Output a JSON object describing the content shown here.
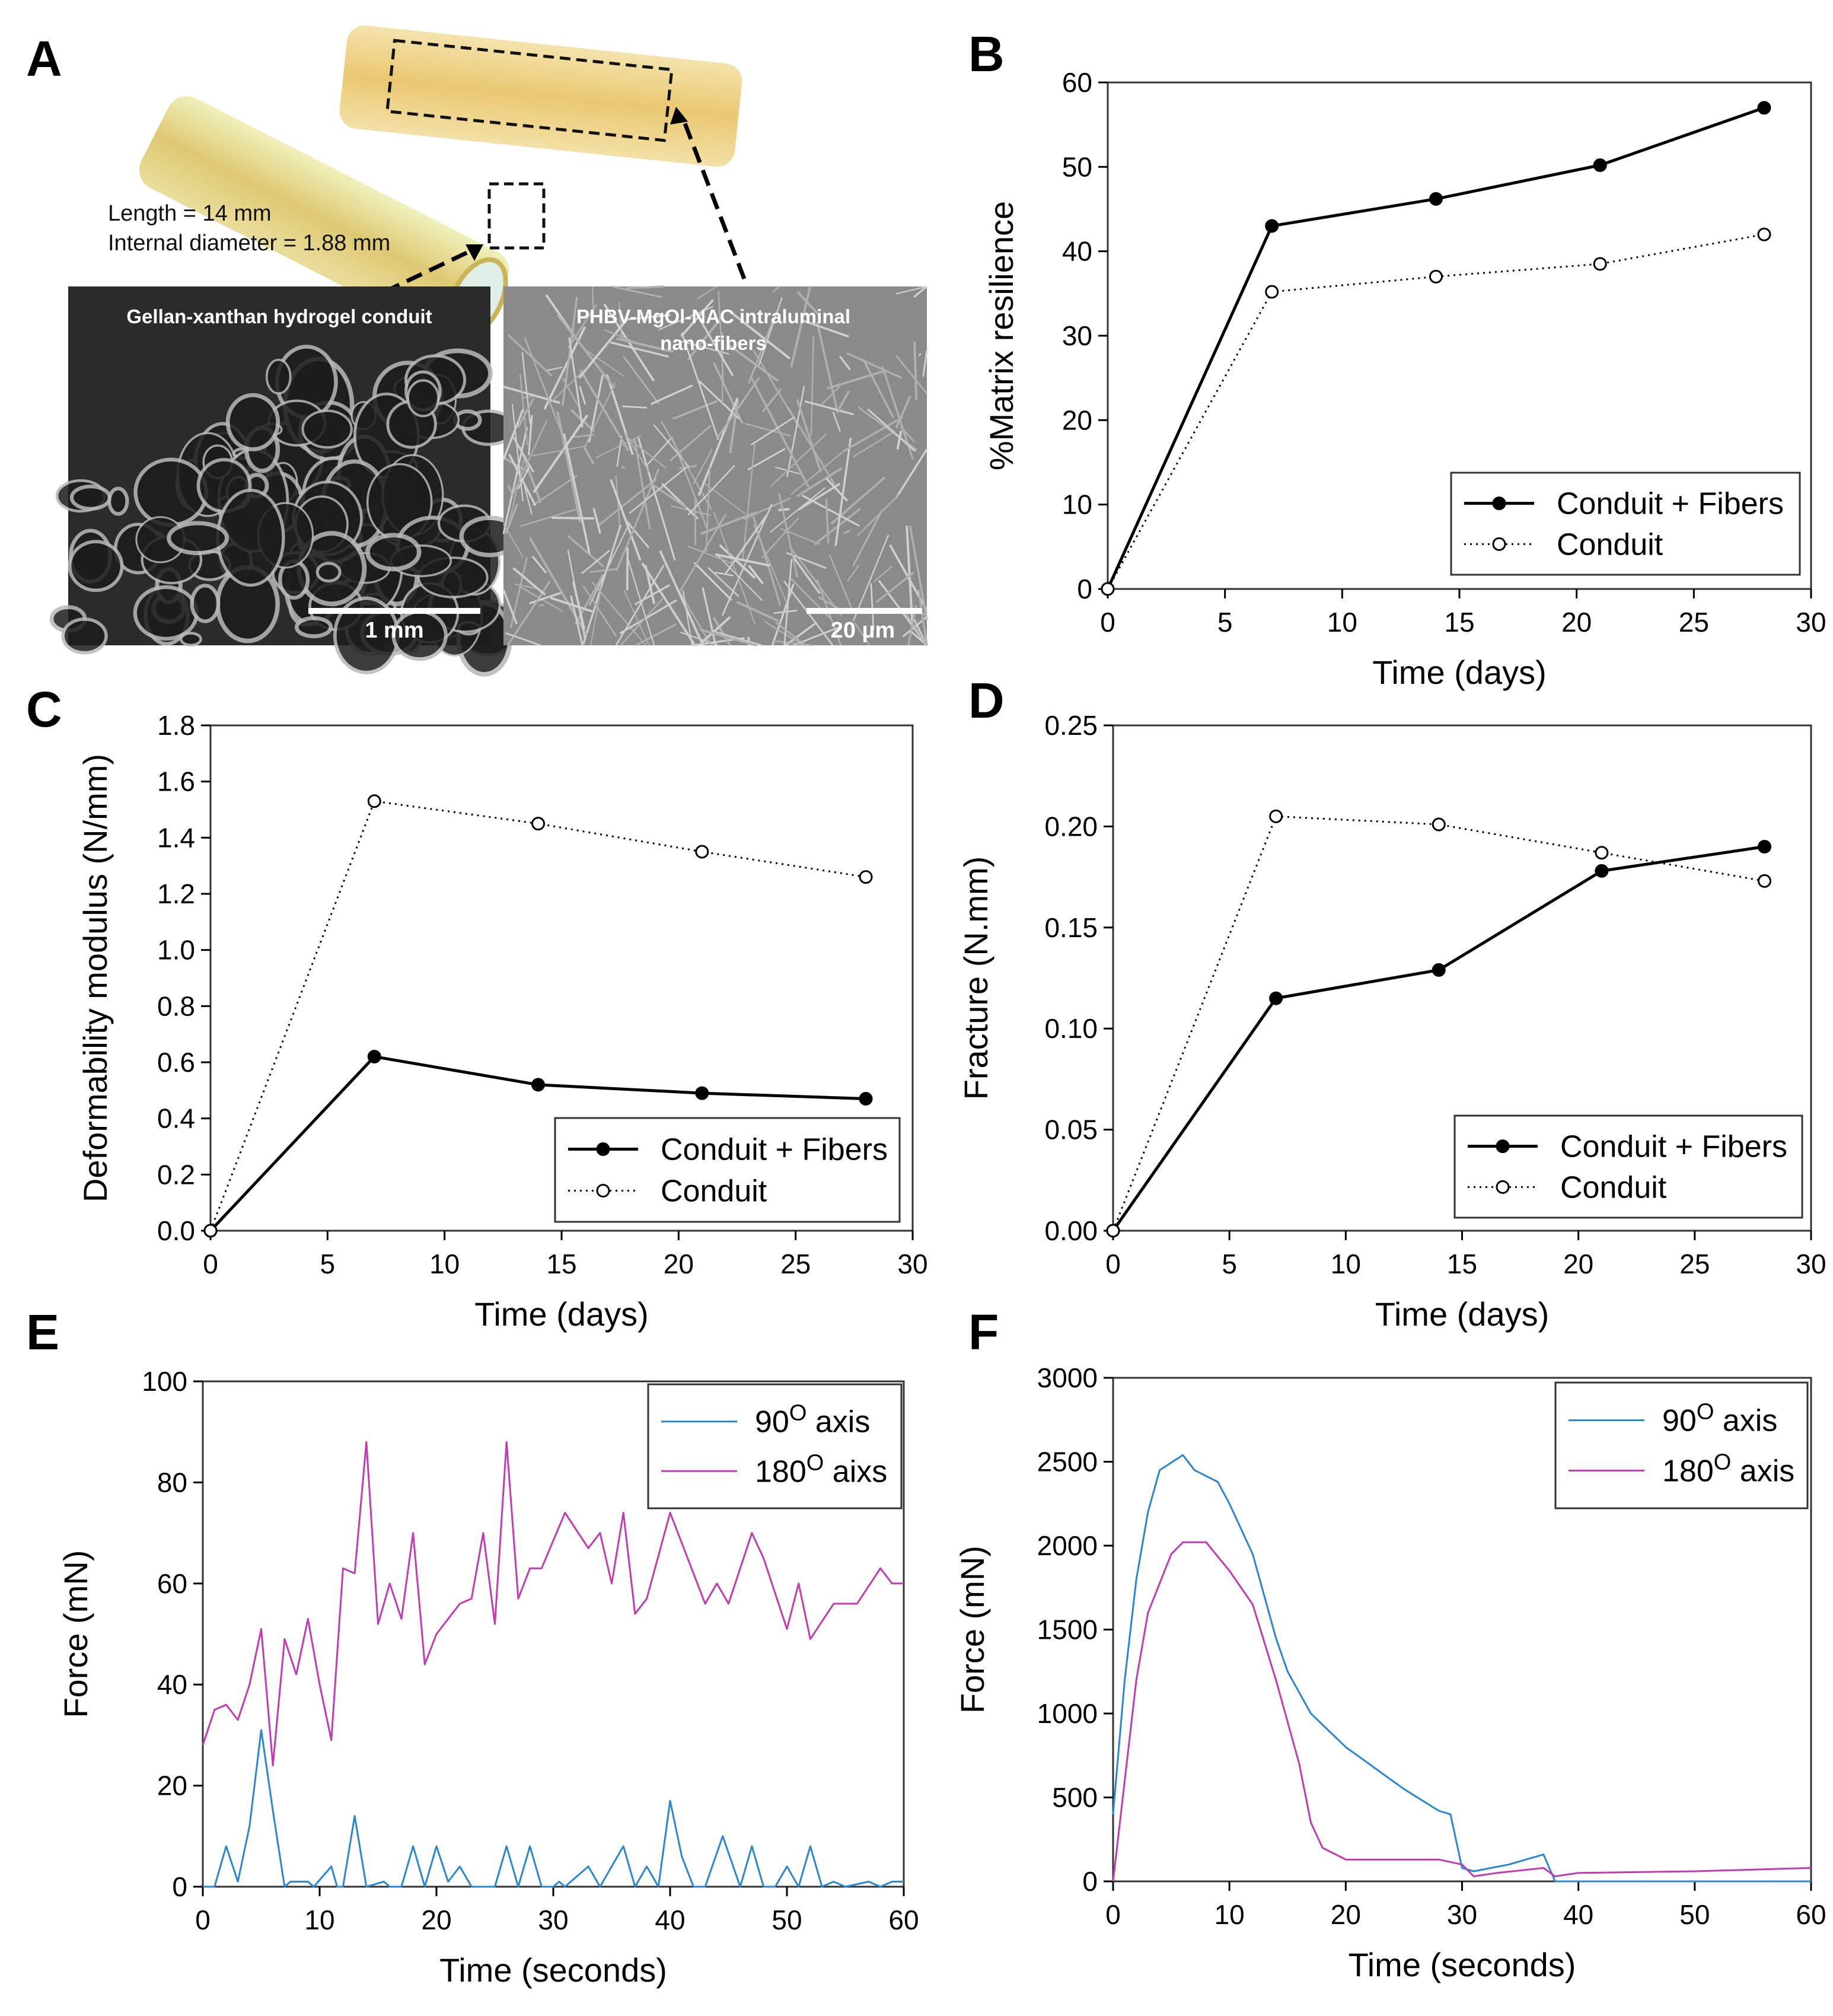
{
  "panel_a": {
    "letter": "A",
    "length_label": "Length = 14 mm",
    "diameter_label": "Internal diameter = 1.88 mm",
    "sem_left_title": "Gellan-xanthan  hydrogel conduit",
    "sem_left_scale": "1 mm",
    "sem_right_title_1": "PHBV-MgOl-NAC  intraluminal",
    "sem_right_title_2": "nano-fibers",
    "sem_right_scale": "20 µm"
  },
  "chart_data": [
    {
      "panel": "B",
      "type": "line",
      "xlabel": "Time (days)",
      "ylabel": "%Matrix resilience",
      "xlim": [
        0,
        30
      ],
      "ylim": [
        0,
        60
      ],
      "xticks": [
        "0",
        "5",
        "10",
        "15",
        "20",
        "25",
        "30"
      ],
      "yticks": [
        "0",
        "10",
        "20",
        "30",
        "40",
        "50",
        "60"
      ],
      "legend": "bottom-right",
      "series": [
        {
          "name": "Conduit + Fibers",
          "style": "solid",
          "marker": "filled-circle",
          "color": "#000000",
          "x": [
            0,
            7,
            14,
            21,
            28
          ],
          "y": [
            0,
            43,
            46.2,
            50.2,
            57
          ]
        },
        {
          "name": "Conduit",
          "style": "dotted",
          "marker": "open-circle",
          "color": "#000000",
          "x": [
            0,
            7,
            14,
            21,
            28
          ],
          "y": [
            0,
            35.2,
            37,
            38.5,
            42
          ]
        }
      ]
    },
    {
      "panel": "C",
      "type": "line",
      "xlabel": "Time (days)",
      "ylabel": "Deformability modulus (N/mm)",
      "xlim": [
        0,
        30
      ],
      "ylim": [
        0,
        1.8
      ],
      "xticks": [
        "0",
        "5",
        "10",
        "15",
        "20",
        "25",
        "30"
      ],
      "yticks": [
        "0.0",
        "0.2",
        "0.4",
        "0.6",
        "0.8",
        "1.0",
        "1.2",
        "1.4",
        "1.6",
        "1.8"
      ],
      "legend": "bottom-right",
      "series": [
        {
          "name": "Conduit + Fibers",
          "style": "solid",
          "marker": "filled-circle",
          "color": "#000000",
          "x": [
            0,
            7,
            14,
            21,
            28
          ],
          "y": [
            0,
            0.62,
            0.52,
            0.49,
            0.47
          ]
        },
        {
          "name": "Conduit",
          "style": "dotted",
          "marker": "open-circle",
          "color": "#000000",
          "x": [
            0,
            7,
            14,
            21,
            28
          ],
          "y": [
            0,
            1.53,
            1.45,
            1.35,
            1.26
          ]
        }
      ]
    },
    {
      "panel": "D",
      "type": "line",
      "xlabel": "Time (days)",
      "ylabel": "Fracture (N.mm)",
      "xlim": [
        0,
        30
      ],
      "ylim": [
        0,
        0.25
      ],
      "xticks": [
        "0",
        "5",
        "10",
        "15",
        "20",
        "25",
        "30"
      ],
      "yticks": [
        "0.00",
        "0.05",
        "0.10",
        "0.15",
        "0.20",
        "0.25"
      ],
      "legend": "bottom-right",
      "series": [
        {
          "name": "Conduit + Fibers",
          "style": "solid",
          "marker": "filled-circle",
          "color": "#000000",
          "x": [
            0,
            7,
            14,
            21,
            28
          ],
          "y": [
            0,
            0.115,
            0.129,
            0.178,
            0.19
          ]
        },
        {
          "name": "Conduit",
          "style": "dotted",
          "marker": "open-circle",
          "color": "#000000",
          "x": [
            0,
            7,
            14,
            21,
            28
          ],
          "y": [
            0,
            0.205,
            0.201,
            0.187,
            0.173
          ]
        }
      ]
    },
    {
      "panel": "E",
      "type": "line",
      "xlabel": "Time (seconds)",
      "ylabel": "Force (mN)",
      "xlim": [
        0,
        60
      ],
      "ylim": [
        0,
        100
      ],
      "xticks": [
        "0",
        "10",
        "20",
        "30",
        "40",
        "50",
        "60"
      ],
      "yticks": [
        "0",
        "20",
        "40",
        "60",
        "80",
        "100"
      ],
      "legend": "top-right",
      "series": [
        {
          "name": "90O axis",
          "name_base": "90",
          "name_sup": "O",
          "name_suffix": " axis",
          "style": "solid",
          "marker": "none",
          "color": "#2a86d1",
          "x": [
            0,
            1,
            2,
            3,
            4,
            5,
            6,
            7,
            7.5,
            9,
            9.5,
            11,
            11.5,
            12,
            13,
            14,
            15.5,
            16,
            17,
            18,
            19,
            20,
            21,
            22,
            23,
            25,
            26,
            27,
            28,
            29,
            30,
            30.5,
            31,
            33,
            34,
            36,
            37,
            38,
            39,
            40,
            41,
            42,
            43,
            44.5,
            46,
            47,
            48,
            49,
            50,
            51,
            52,
            53,
            54,
            55,
            57,
            58,
            59,
            60
          ],
          "y": [
            0,
            0,
            8,
            1,
            12,
            31,
            15,
            0,
            1,
            1,
            0,
            4,
            0,
            0,
            14,
            0,
            1,
            0,
            0,
            8,
            0,
            8,
            1,
            4,
            0,
            0,
            8,
            0,
            8,
            0,
            0,
            1,
            0,
            4,
            0,
            8,
            0,
            4,
            0,
            17,
            6,
            0,
            0,
            10,
            0,
            8,
            0,
            0,
            4,
            0,
            8,
            0,
            1,
            0,
            1,
            0,
            1,
            1
          ]
        },
        {
          "name": "180O aixs",
          "name_base": "180",
          "name_sup": "O",
          "name_suffix": " aixs",
          "style": "solid",
          "marker": "none",
          "color": "#c23bb2",
          "x": [
            0,
            1,
            2,
            3,
            4,
            5,
            6,
            7,
            8,
            9,
            10,
            11,
            12,
            13,
            14,
            15,
            16,
            17,
            18,
            19,
            20,
            22,
            23,
            24,
            25,
            26,
            27,
            28,
            29,
            31,
            33,
            34,
            35,
            36,
            37,
            38,
            40,
            42,
            43,
            44,
            45,
            47,
            48,
            50,
            51,
            52,
            54,
            56,
            58,
            59,
            60
          ],
          "y": [
            28,
            35,
            36,
            33,
            40,
            51,
            24,
            49,
            42,
            53,
            40,
            29,
            63,
            62,
            88,
            52,
            60,
            53,
            70,
            44,
            50,
            56,
            57,
            70,
            52,
            88,
            57,
            63,
            63,
            74,
            67,
            70,
            60,
            74,
            54,
            57,
            74,
            62,
            56,
            60,
            56,
            70,
            65,
            51,
            60,
            49,
            56,
            56,
            63,
            60,
            60
          ]
        }
      ]
    },
    {
      "panel": "F",
      "type": "line",
      "xlabel": "Time (seconds)",
      "ylabel": "Force (mN)",
      "xlim": [
        0,
        60
      ],
      "ylim": [
        0,
        3000
      ],
      "xticks": [
        "0",
        "10",
        "20",
        "30",
        "40",
        "50",
        "60"
      ],
      "yticks": [
        "0",
        "500",
        "1000",
        "1500",
        "2000",
        "2500",
        "3000"
      ],
      "legend": "top-right",
      "series": [
        {
          "name": "90O axis",
          "name_base": "90",
          "name_sup": "O",
          "name_suffix": " axis",
          "style": "solid",
          "marker": "none",
          "color": "#2a86d1",
          "x": [
            0,
            1,
            2,
            3,
            4,
            6,
            7,
            9,
            10,
            12,
            13,
            14,
            15,
            17,
            20,
            25,
            28,
            29,
            30,
            31,
            34,
            37,
            38,
            60
          ],
          "y": [
            400,
            1200,
            1800,
            2200,
            2450,
            2540,
            2450,
            2380,
            2250,
            1950,
            1700,
            1450,
            1250,
            1000,
            800,
            550,
            420,
            400,
            80,
            60,
            100,
            160,
            0,
            0
          ]
        },
        {
          "name": "180O axis",
          "name_base": "180",
          "name_sup": "O",
          "name_suffix": " axis",
          "style": "solid",
          "marker": "none",
          "color": "#c23bb2",
          "x": [
            0,
            1,
            2,
            3,
            5,
            6,
            8,
            10,
            12,
            14,
            16,
            17,
            18,
            20,
            25,
            28,
            30,
            31,
            33,
            37,
            38,
            40,
            50,
            60
          ],
          "y": [
            0,
            600,
            1200,
            1600,
            1950,
            2020,
            2020,
            1850,
            1650,
            1200,
            700,
            350,
            200,
            130,
            130,
            130,
            100,
            30,
            50,
            80,
            30,
            50,
            60,
            80
          ]
        }
      ]
    }
  ]
}
